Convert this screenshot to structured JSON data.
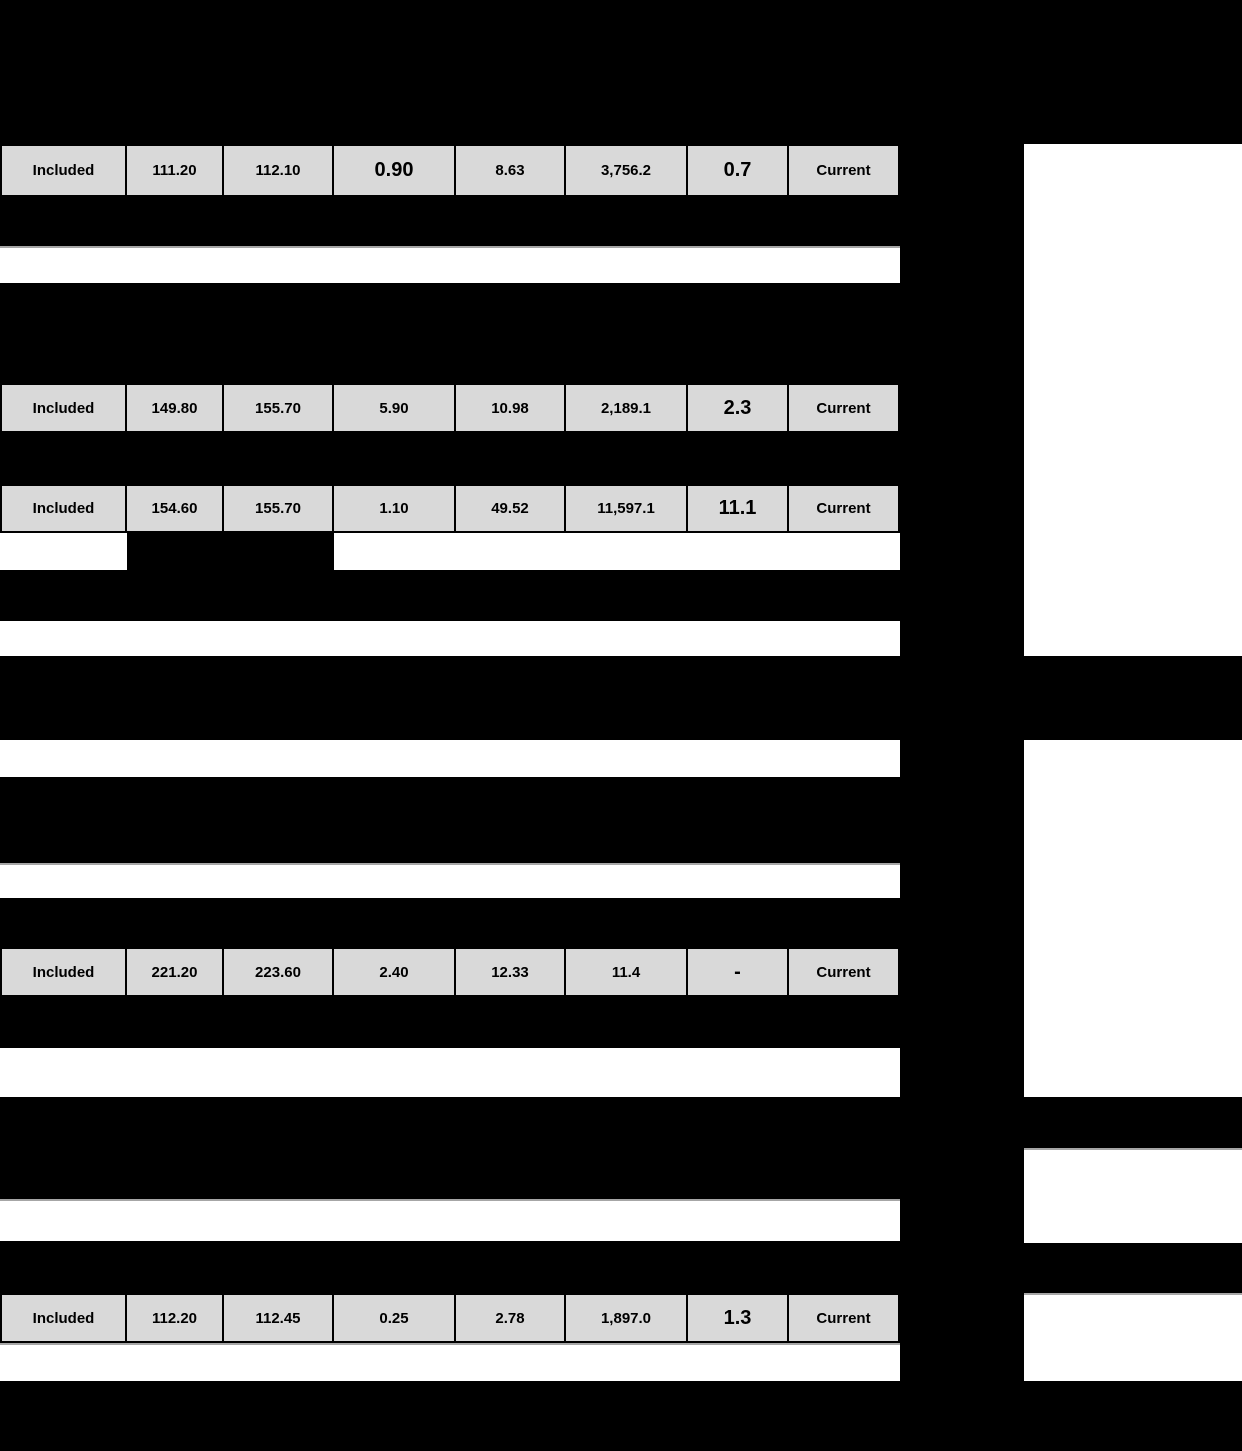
{
  "table": {
    "rows": [
      {
        "cells": [
          "Included",
          "111.20",
          "112.10",
          "0.90",
          "8.63",
          "3,756.2",
          "0.7",
          "Current"
        ]
      },
      {
        "cells": [
          "Included",
          "149.80",
          "155.70",
          "5.90",
          "10.98",
          "2,189.1",
          "2.3",
          "Current"
        ]
      },
      {
        "cells": [
          "Included",
          "154.60",
          "155.70",
          "1.10",
          "49.52",
          "11,597.1",
          "11.1",
          "Current"
        ]
      },
      {
        "cells": [
          "Included",
          "221.20",
          "223.60",
          "2.40",
          "12.33",
          "11.4",
          "-",
          "Current"
        ]
      },
      {
        "cells": [
          "Included",
          "112.20",
          "112.45",
          "0.25",
          "2.78",
          "1,897.0",
          "1.3",
          "Current"
        ]
      }
    ]
  },
  "colors": {
    "background": "#000000",
    "cell_background": "#d9d9d9",
    "cell_border": "#000000",
    "blank_band": "#ffffff",
    "gridline": "#a6a6a6"
  }
}
